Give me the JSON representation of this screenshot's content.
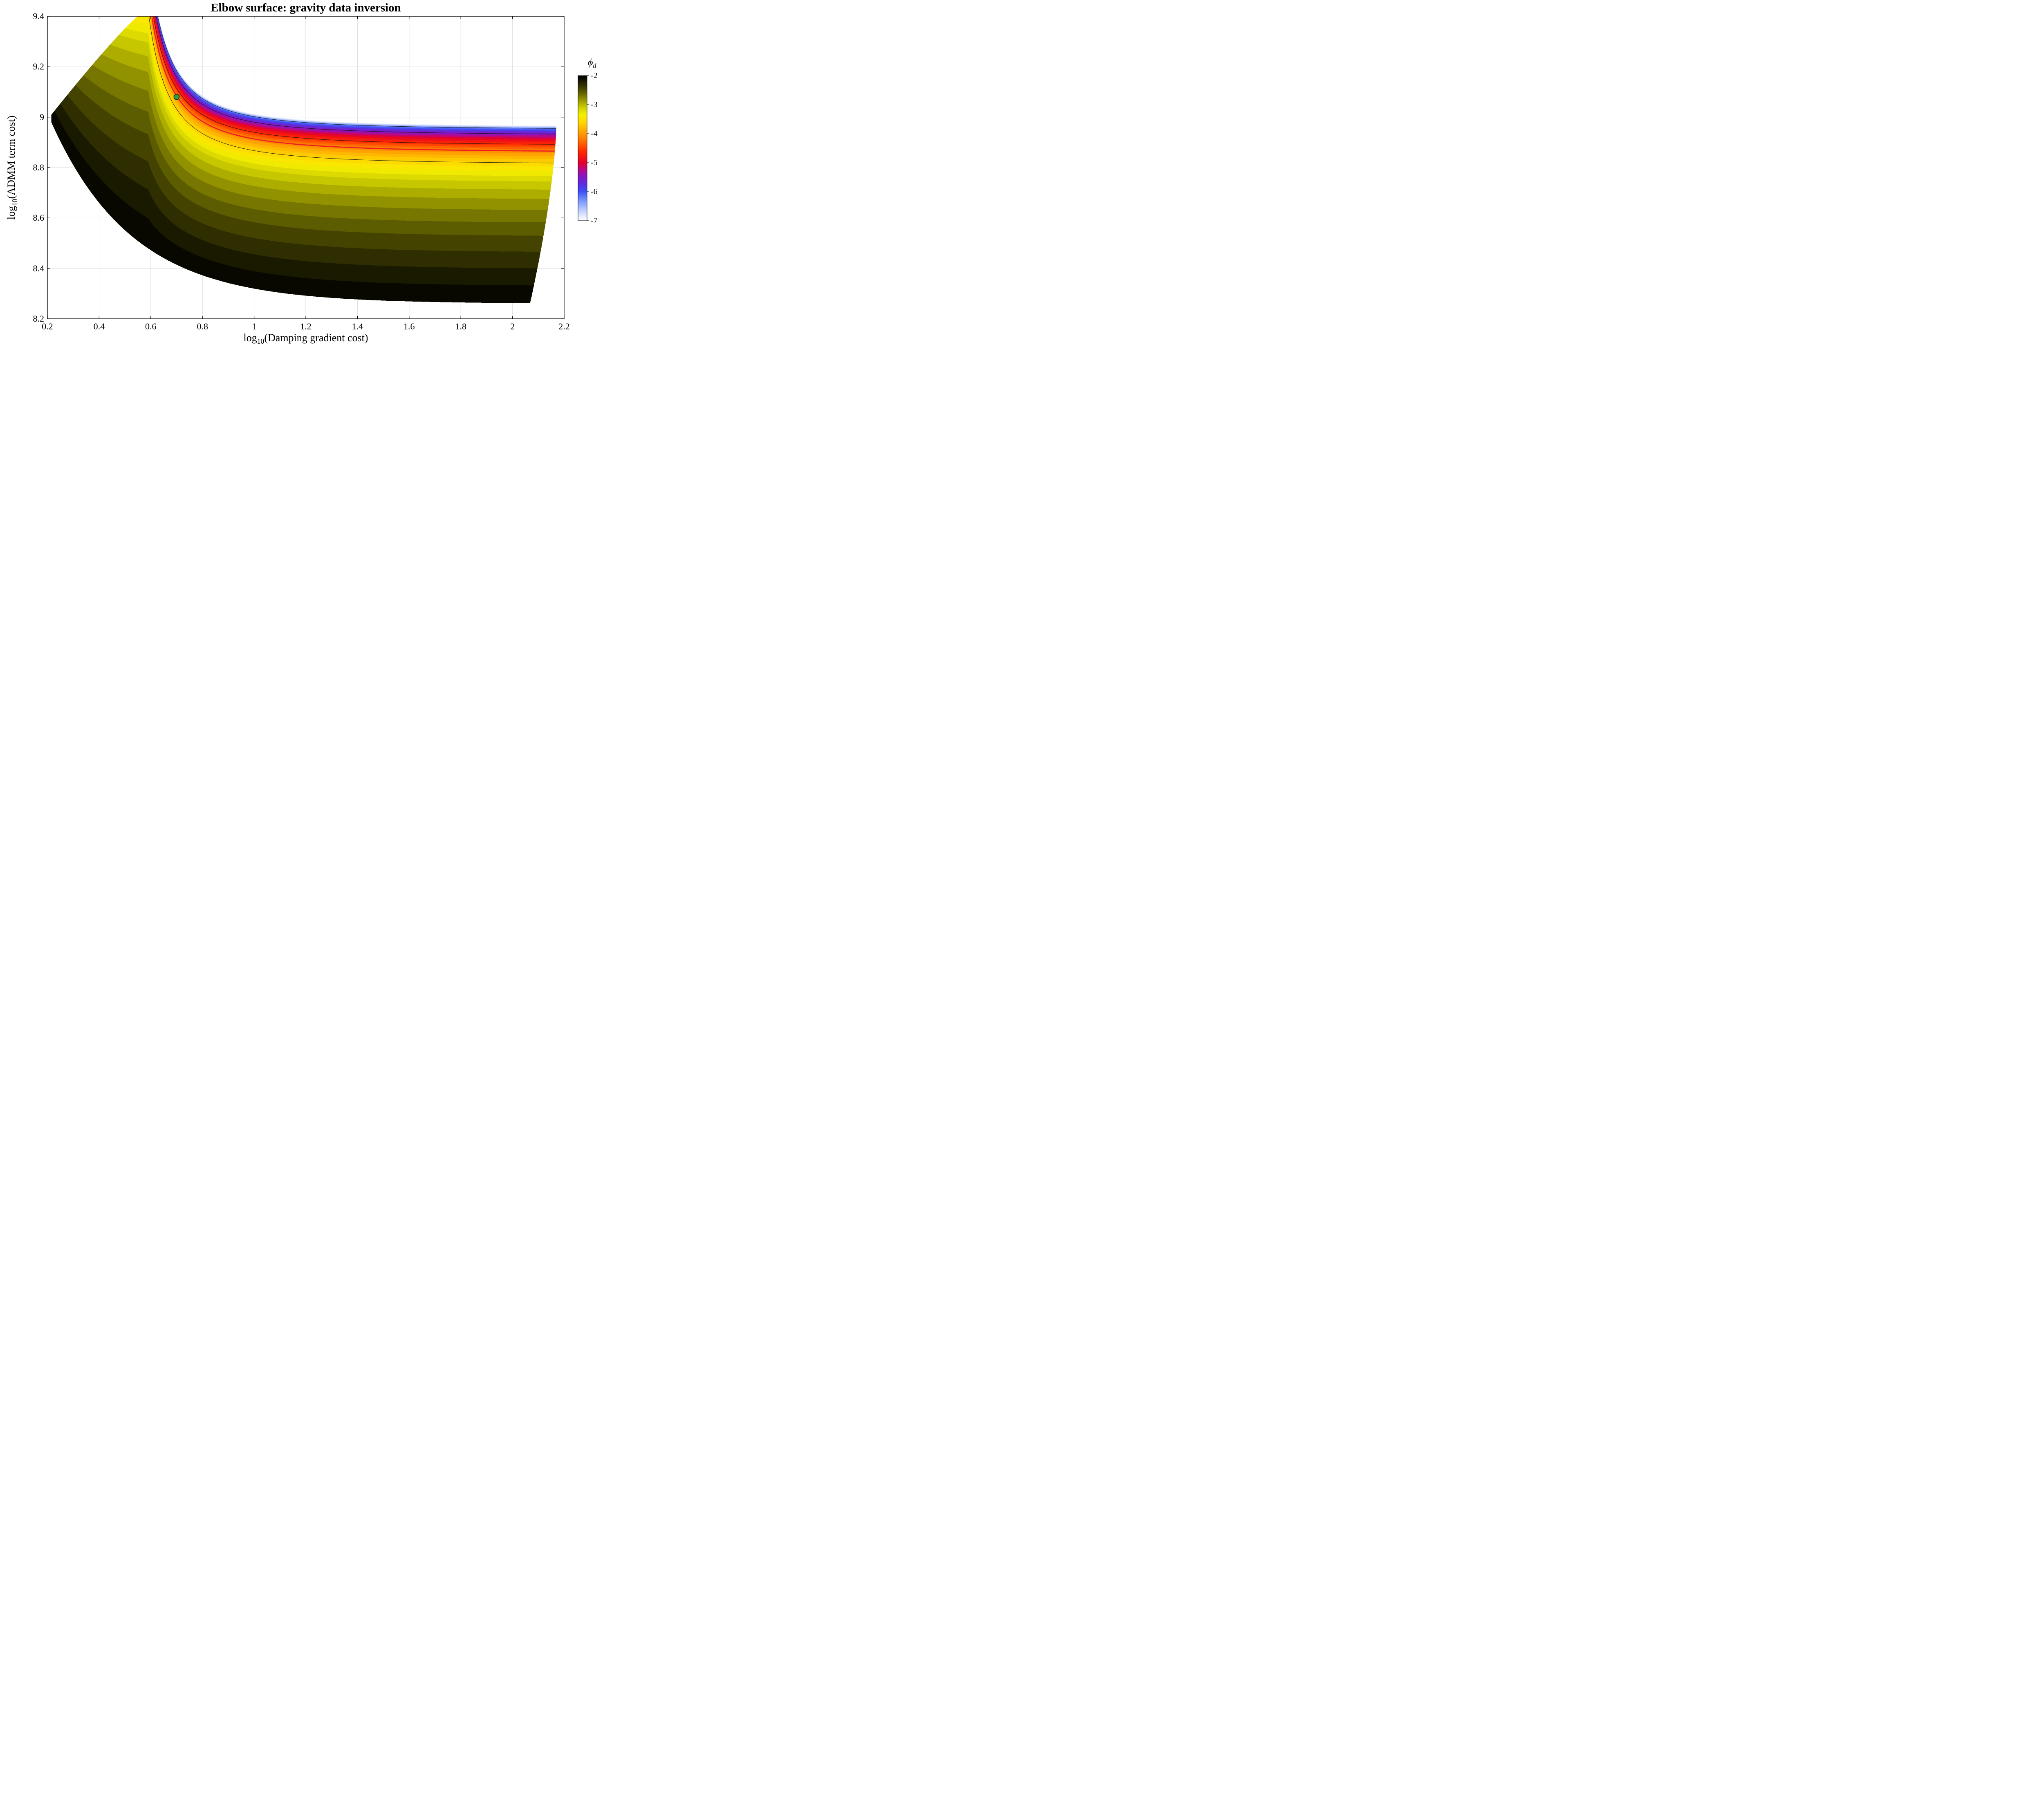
{
  "chart": {
    "title": "Elbow surface: gravity data inversion",
    "xlabel": {
      "pre": "log",
      "sub": "10",
      "post": "(Damping gradient cost)"
    },
    "ylabel": {
      "pre": "log",
      "sub": "10",
      "post": "(ADMM term cost)"
    },
    "colorbar": {
      "label_phi": "ϕ",
      "label_sub": "d",
      "tick_labels": [
        "-2",
        "-3",
        "-4",
        "-5",
        "-6",
        "-7"
      ],
      "tick_values": [
        -2,
        -3,
        -4,
        -5,
        -6,
        -7
      ]
    }
  },
  "chart_data": {
    "type": "filled_contour",
    "title": "Elbow surface: gravity data inversion",
    "xlabel": "log10(Damping gradient cost)",
    "ylabel": "log10(ADMM term cost)",
    "colorbar_label": "phi_d",
    "x_range": [
      0.2,
      2.2
    ],
    "y_range": [
      8.2,
      9.4
    ],
    "x_ticks": [
      0.2,
      0.4,
      0.6,
      0.8,
      1,
      1.2,
      1.4,
      1.6,
      1.8,
      2,
      2.2
    ],
    "x_tick_labels": [
      "0.2",
      "0.4",
      "0.6",
      "0.8",
      "1",
      "1.2",
      "1.4",
      "1.6",
      "1.8",
      "2",
      "2.2"
    ],
    "y_ticks": [
      8.2,
      8.4,
      8.6,
      8.8,
      9,
      9.2,
      9.4
    ],
    "y_tick_labels": [
      "8.2",
      "8.4",
      "8.6",
      "8.8",
      "9",
      "9.2",
      "9.4"
    ],
    "grid": true,
    "value_range": [
      -7,
      -2
    ],
    "band_step": 0.125,
    "colormap": [
      [
        -7.0,
        "#ffffff"
      ],
      [
        -6.7,
        "#c9d6ff"
      ],
      [
        -6.35,
        "#7f9dff"
      ],
      [
        -6.0,
        "#3c50f5"
      ],
      [
        -5.75,
        "#5a2fe0"
      ],
      [
        -5.45,
        "#8c14bf"
      ],
      [
        -5.2,
        "#c00878"
      ],
      [
        -5.0,
        "#e60028"
      ],
      [
        -4.6,
        "#ff2a00"
      ],
      [
        -4.2,
        "#ff7800"
      ],
      [
        -3.9,
        "#ffaa00"
      ],
      [
        -3.6,
        "#ffd800"
      ],
      [
        -3.35,
        "#f5ef00"
      ],
      [
        -3.1,
        "#cfcf00"
      ],
      [
        -2.85,
        "#9a9a00"
      ],
      [
        -2.6,
        "#636300"
      ],
      [
        -2.35,
        "#343400"
      ],
      [
        -2.15,
        "#141400"
      ],
      [
        -2.0,
        "#000000"
      ]
    ],
    "region": {
      "tip_x": 0.215,
      "right_x": 2.17,
      "clip_y": 9.4,
      "bottom": {
        "base": 8.26,
        "amp": 0.72,
        "tau": 0.315
      },
      "top": {
        "base": 8.96,
        "k": 0.01695,
        "x0": 0.45,
        "p": 1.9,
        "floor": 0.14
      },
      "left_edge": {
        "top_x": 0.55,
        "coef": 1.3,
        "pow": 1.1
      },
      "right_edge": {
        "y_ref": 8.97,
        "span": 0.7,
        "inset": 0.1
      }
    },
    "depth_profile": [
      [
        0,
        -7
      ],
      [
        0.008,
        -6.6
      ],
      [
        0.02,
        -6.1
      ],
      [
        0.035,
        -5.7
      ],
      [
        0.05,
        -5.45
      ],
      [
        0.075,
        -5.0
      ],
      [
        0.105,
        -4.6
      ],
      [
        0.143,
        -4.1
      ],
      [
        0.18,
        -3.8
      ],
      [
        0.21,
        -3.6
      ],
      [
        0.26,
        -3.35
      ],
      [
        0.32,
        -3.1
      ],
      [
        0.4,
        -2.9
      ],
      [
        0.5,
        -2.7
      ],
      [
        0.62,
        -2.5
      ],
      [
        0.75,
        -2.32
      ],
      [
        0.88,
        -2.15
      ],
      [
        1,
        -2
      ]
    ],
    "contour_lines": {
      "thin_levels": [
        -6.3,
        -5.5,
        -4.6,
        -3.6
      ],
      "thin_color": "#101010",
      "red_level": -4.1,
      "red_color": "#ec1c24"
    },
    "marker": {
      "x": 0.7,
      "y": 9.08,
      "radius_px": 6.5,
      "color": "#2f9e41",
      "edge": "#123a18"
    }
  }
}
